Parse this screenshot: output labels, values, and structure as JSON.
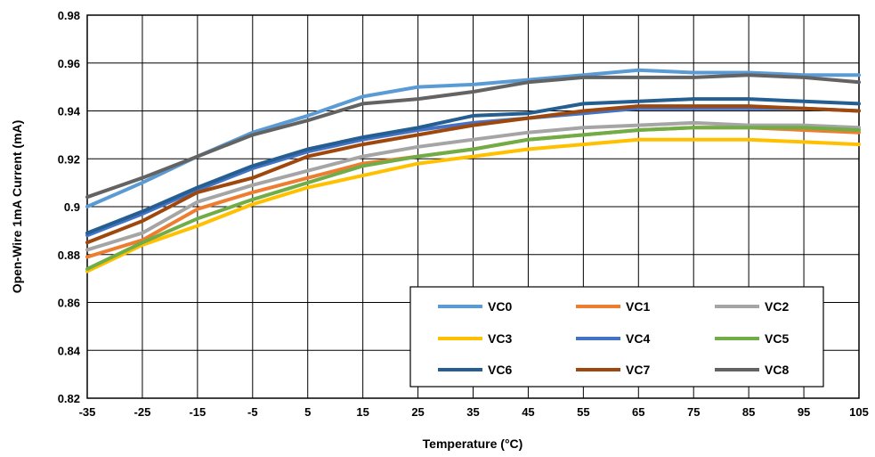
{
  "chart_data": {
    "type": "line",
    "xlabel": "Temperature (°C)",
    "ylabel": "Open-Wire 1mA Current (mA)",
    "x": [
      -35,
      -25,
      -15,
      -5,
      5,
      15,
      25,
      35,
      45,
      55,
      65,
      75,
      85,
      95,
      105
    ],
    "x_tick_labels": [
      "-35",
      "-25",
      "-15",
      "-5",
      "5",
      "15",
      "25",
      "35",
      "45",
      "55",
      "65",
      "75",
      "85",
      "95",
      "105"
    ],
    "xlim": [
      -35,
      105
    ],
    "ylim": [
      0.82,
      0.98
    ],
    "y_ticks": [
      0.82,
      0.84,
      0.86,
      0.88,
      0.9,
      0.92,
      0.94,
      0.96,
      0.98
    ],
    "y_tick_labels": [
      "0.82",
      "0.84",
      "0.86",
      "0.88",
      "0.9",
      "0.92",
      "0.94",
      "0.96",
      "0.98"
    ],
    "grid": true,
    "legend_position": "bottom-right",
    "series": [
      {
        "name": "VC0",
        "color": "#5B9BD5",
        "values": [
          0.9,
          0.91,
          0.921,
          0.931,
          0.938,
          0.946,
          0.95,
          0.951,
          0.953,
          0.955,
          0.957,
          0.956,
          0.956,
          0.955,
          0.955
        ]
      },
      {
        "name": "VC1",
        "color": "#ED7D31",
        "values": [
          0.879,
          0.886,
          0.899,
          0.906,
          0.912,
          0.918,
          0.921,
          0.924,
          0.928,
          0.93,
          0.932,
          0.933,
          0.933,
          0.932,
          0.931
        ]
      },
      {
        "name": "VC2",
        "color": "#A5A5A5",
        "values": [
          0.882,
          0.889,
          0.902,
          0.909,
          0.915,
          0.921,
          0.925,
          0.928,
          0.931,
          0.933,
          0.934,
          0.935,
          0.934,
          0.934,
          0.933
        ]
      },
      {
        "name": "VC3",
        "color": "#FFC000",
        "values": [
          0.873,
          0.884,
          0.892,
          0.901,
          0.908,
          0.913,
          0.918,
          0.921,
          0.924,
          0.926,
          0.928,
          0.928,
          0.928,
          0.927,
          0.926
        ]
      },
      {
        "name": "VC4",
        "color": "#4472C4",
        "values": [
          0.888,
          0.897,
          0.907,
          0.916,
          0.923,
          0.928,
          0.932,
          0.935,
          0.937,
          0.939,
          0.941,
          0.941,
          0.941,
          0.941,
          0.94
        ]
      },
      {
        "name": "VC5",
        "color": "#70AD47",
        "values": [
          0.874,
          0.885,
          0.895,
          0.903,
          0.91,
          0.917,
          0.921,
          0.924,
          0.928,
          0.93,
          0.932,
          0.933,
          0.933,
          0.933,
          0.932
        ]
      },
      {
        "name": "VC6",
        "color": "#255E91",
        "values": [
          0.889,
          0.898,
          0.908,
          0.917,
          0.924,
          0.929,
          0.933,
          0.938,
          0.939,
          0.943,
          0.944,
          0.945,
          0.945,
          0.944,
          0.943
        ]
      },
      {
        "name": "VC7",
        "color": "#9E480E",
        "values": [
          0.885,
          0.894,
          0.906,
          0.912,
          0.921,
          0.926,
          0.93,
          0.934,
          0.937,
          0.94,
          0.942,
          0.942,
          0.942,
          0.941,
          0.94
        ]
      },
      {
        "name": "VC8",
        "color": "#636363",
        "values": [
          0.904,
          0.912,
          0.921,
          0.93,
          0.936,
          0.943,
          0.945,
          0.948,
          0.952,
          0.954,
          0.954,
          0.954,
          0.955,
          0.954,
          0.952
        ]
      }
    ]
  }
}
